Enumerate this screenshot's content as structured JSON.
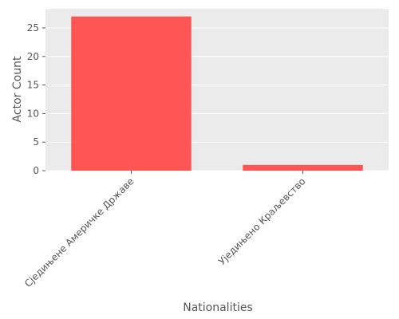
{
  "chart_data": {
    "type": "bar",
    "title": "",
    "xlabel": "Nationalities",
    "ylabel": "Actor Count",
    "categories": [
      "Сједињене Америчке Државе",
      "Уједињено Краљевство"
    ],
    "values": [
      27,
      1
    ],
    "ylim": [
      0,
      28.35
    ],
    "yticks": [
      "0",
      "5",
      "10",
      "15",
      "20",
      "25"
    ],
    "grid": true,
    "bar_color": "#ff5555",
    "panel_background": "#ebebeb"
  }
}
